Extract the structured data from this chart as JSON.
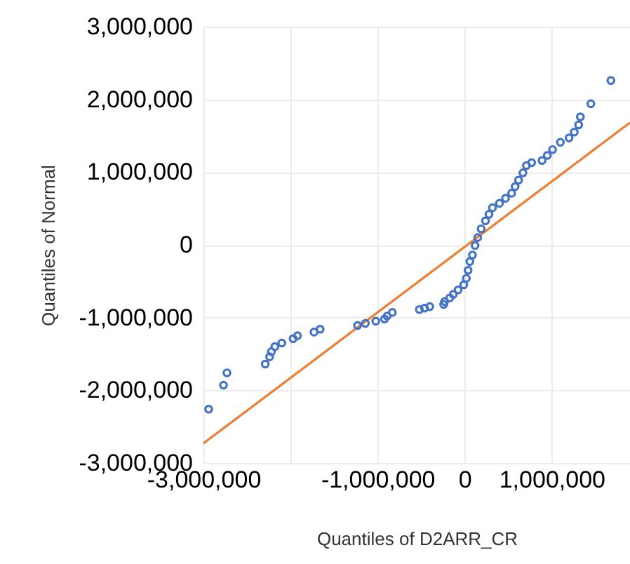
{
  "chart_data": {
    "type": "scatter",
    "xlabel": "Quantiles of D2ARR_CR",
    "ylabel": "Quantiles of Normal",
    "xlim": [
      -3000000,
      1900000
    ],
    "ylim": [
      -3000000,
      3000000
    ],
    "xticks": [
      {
        "value": -3000000,
        "label": "-3,000,000"
      },
      {
        "value": -2000000,
        "label": null
      },
      {
        "value": -1000000,
        "label": "-1,000,000"
      },
      0,
      {
        "value": 1000000,
        "label": "1,000,000"
      }
    ],
    "yticks": [
      {
        "value": -3000000,
        "label": "-3,000,000"
      },
      {
        "value": -2000000,
        "label": "-2,000,000"
      },
      {
        "value": -1000000,
        "label": "-1,000,000"
      },
      0,
      {
        "value": 1000000,
        "label": "1,000,000"
      },
      {
        "value": 2000000,
        "label": "2,000,000"
      },
      {
        "value": 3000000,
        "label": "3,000,000"
      }
    ],
    "grid": true,
    "series": [
      {
        "type": "scatter",
        "color": "#4472c4",
        "marker": "circle",
        "x": [
          -2940000,
          -2770000,
          -2730000,
          -2290000,
          -2240000,
          -2220000,
          -2180000,
          -2100000,
          -1970000,
          -1920000,
          -1730000,
          -1660000,
          -1230000,
          -1140000,
          -1020000,
          -920000,
          -890000,
          -830000,
          -520000,
          -460000,
          -400000,
          -240000,
          -230000,
          -170000,
          -130000,
          -75000,
          -10000,
          20000,
          40000,
          60000,
          90000,
          120000,
          150000,
          190000,
          240000,
          280000,
          320000,
          400000,
          470000,
          540000,
          580000,
          620000,
          670000,
          710000,
          770000,
          890000,
          950000,
          1010000,
          1100000,
          1200000,
          1260000,
          1310000,
          1330000,
          1450000,
          1680000
        ],
        "values": [
          -2260000,
          -1930000,
          -1760000,
          -1640000,
          -1540000,
          -1470000,
          -1400000,
          -1350000,
          -1290000,
          -1250000,
          -1200000,
          -1160000,
          -1110000,
          -1080000,
          -1050000,
          -1020000,
          -980000,
          -930000,
          -890000,
          -870000,
          -850000,
          -820000,
          -780000,
          -730000,
          -680000,
          -620000,
          -550000,
          -460000,
          -350000,
          -230000,
          -140000,
          -10000,
          100000,
          220000,
          330000,
          420000,
          510000,
          570000,
          640000,
          710000,
          800000,
          890000,
          990000,
          1090000,
          1130000,
          1160000,
          1230000,
          1310000,
          1410000,
          1470000,
          1550000,
          1650000,
          1760000,
          1940000,
          2260000
        ]
      },
      {
        "type": "line",
        "color": "#ed7d31",
        "marker": "none",
        "line_style": "solid",
        "x": [
          -3000000,
          1900000
        ],
        "values": [
          -2730000,
          1680000
        ]
      }
    ]
  }
}
